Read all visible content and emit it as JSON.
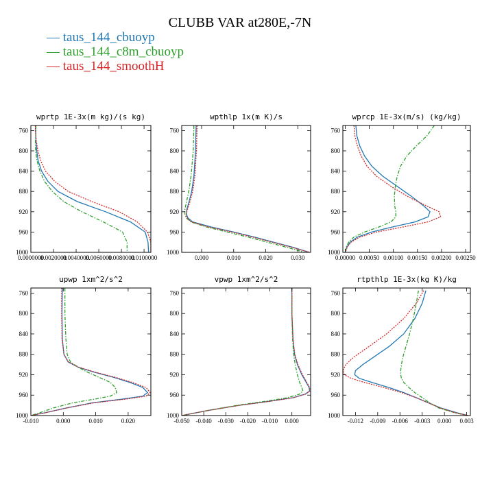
{
  "figure": {
    "title": "CLUBB VAR at280E,-7N"
  },
  "legend": [
    {
      "label": "taus_144_cbuoyp",
      "color": "#1f77b4",
      "dash": "solid"
    },
    {
      "label": "taus_144_c8m_cbuoyp",
      "color": "#2ca02c",
      "dash": "dashdot"
    },
    {
      "label": "taus_144_smoothH",
      "color": "#d62728",
      "dash": "dot"
    }
  ],
  "chart_data": [
    {
      "type": "line",
      "title": "wprtp  1E-3x(m kg)/(s kg)",
      "xlim": [
        0,
        0.0106
      ],
      "ylim": [
        750,
        1000
      ],
      "xticks": [
        0,
        0.002,
        0.004,
        0.006,
        0.008,
        0.01
      ],
      "xtick_labels": [
        "0.0000000",
        "0.0020000",
        "0.0040000",
        "0.0060000",
        "0.0080000",
        "0.0100000"
      ],
      "yticks": [
        760,
        800,
        840,
        880,
        920,
        960,
        1000
      ],
      "series": [
        {
          "name": "taus_144_cbuoyp",
          "y": [
            750,
            760,
            780,
            800,
            820,
            840,
            860,
            880,
            900,
            920,
            940,
            960,
            980,
            1000
          ],
          "x": [
            0.00042,
            0.00042,
            0.00045,
            0.00052,
            0.00065,
            0.00095,
            0.0015,
            0.0024,
            0.0041,
            0.0066,
            0.0088,
            0.0101,
            0.01035,
            0.0104
          ]
        },
        {
          "name": "taus_144_c8m_cbuoyp",
          "y": [
            750,
            760,
            780,
            800,
            820,
            840,
            860,
            880,
            900,
            920,
            940,
            960,
            980,
            1000
          ],
          "x": [
            0.00045,
            0.00045,
            0.0004,
            0.00042,
            0.00055,
            0.0008,
            0.0012,
            0.0019,
            0.0029,
            0.0045,
            0.0064,
            0.0081,
            0.0085,
            0.0085
          ]
        },
        {
          "name": "taus_144_smoothH",
          "y": [
            750,
            760,
            780,
            800,
            820,
            840,
            860,
            880,
            900,
            920,
            940,
            960,
            980,
            1000
          ],
          "x": [
            0.0004,
            0.0004,
            0.00048,
            0.00062,
            0.00088,
            0.0013,
            0.0021,
            0.0033,
            0.0054,
            0.0078,
            0.0094,
            0.0103,
            0.0106,
            0.0106
          ]
        }
      ]
    },
    {
      "type": "line",
      "title": "wpthlp  1x(m K)/s",
      "xlim": [
        -0.0062,
        0.034
      ],
      "ylim": [
        750,
        1000
      ],
      "xticks": [
        0,
        0.01,
        0.02,
        0.03
      ],
      "xtick_labels": [
        "0.000",
        "0.010",
        "0.020",
        "0.030"
      ],
      "yticks": [
        760,
        800,
        840,
        880,
        920,
        960,
        1000
      ],
      "series": [
        {
          "name": "taus_144_cbuoyp",
          "y": [
            750,
            800,
            850,
            880,
            900,
            915,
            925,
            932,
            940,
            950,
            960,
            970,
            980,
            990,
            1000
          ],
          "x": [
            -0.0017,
            -0.0019,
            -0.0024,
            -0.0031,
            -0.0039,
            -0.0046,
            -0.0047,
            -0.0043,
            -0.0028,
            0.003,
            0.01,
            0.0165,
            0.0225,
            0.0285,
            0.0335
          ]
        },
        {
          "name": "taus_144_c8m_cbuoyp",
          "y": [
            750,
            800,
            850,
            880,
            900,
            915,
            925,
            932,
            940,
            950,
            960,
            970,
            980,
            990,
            1000
          ],
          "x": [
            -0.0024,
            -0.0026,
            -0.0033,
            -0.004,
            -0.0047,
            -0.0052,
            -0.0052,
            -0.0048,
            -0.0034,
            0.0015,
            0.008,
            0.0145,
            0.0205,
            0.0265,
            0.0322
          ]
        },
        {
          "name": "taus_144_smoothH",
          "y": [
            750,
            800,
            850,
            880,
            900,
            915,
            925,
            932,
            940,
            950,
            960,
            970,
            980,
            990,
            1000
          ],
          "x": [
            -0.0014,
            -0.0016,
            -0.0021,
            -0.0028,
            -0.0036,
            -0.0044,
            -0.0048,
            -0.0046,
            -0.0032,
            0.0022,
            0.0095,
            0.016,
            0.022,
            0.028,
            0.0338
          ]
        }
      ]
    },
    {
      "type": "line",
      "title": "wprcp  1E-3x(m/s) (kg/kg)",
      "xlim": [
        -5e-05,
        0.0026
      ],
      "ylim": [
        750,
        1000
      ],
      "xticks": [
        0,
        0.0005,
        0.001,
        0.0015,
        0.002,
        0.0025
      ],
      "xtick_labels": [
        "0.00000",
        "0.00050",
        "0.00100",
        "0.00150",
        "0.00200",
        "0.00250"
      ],
      "yticks": [
        760,
        800,
        840,
        880,
        920,
        960,
        1000
      ],
      "series": [
        {
          "name": "taus_144_cbuoyp",
          "y": [
            750,
            770,
            790,
            810,
            830,
            850,
            870,
            890,
            910,
            920,
            930,
            940,
            950,
            960,
            970,
            980,
            990,
            1000
          ],
          "x": [
            0.00022,
            0.00024,
            0.0003,
            0.0004,
            0.00055,
            0.00078,
            0.00108,
            0.00138,
            0.00165,
            0.00176,
            0.00172,
            0.00145,
            0.00098,
            0.00055,
            0.00025,
            0.0001,
            3e-05,
            0.0
          ]
        },
        {
          "name": "taus_144_c8m_cbuoyp",
          "y": [
            750,
            770,
            790,
            810,
            830,
            850,
            870,
            890,
            910,
            920,
            930,
            940,
            950,
            960,
            970,
            980,
            990,
            1000
          ],
          "x": [
            0.00185,
            0.0017,
            0.00148,
            0.00128,
            0.00115,
            0.00108,
            0.00104,
            0.00102,
            0.00103,
            0.00105,
            0.00105,
            0.00095,
            0.0007,
            0.0004,
            0.00018,
            7e-05,
            2e-05,
            0.0
          ]
        },
        {
          "name": "taus_144_smoothH",
          "y": [
            750,
            770,
            790,
            810,
            830,
            850,
            870,
            890,
            910,
            920,
            930,
            940,
            950,
            960,
            970,
            980,
            990,
            1000
          ],
          "x": [
            0.00018,
            0.0002,
            0.00025,
            0.00033,
            0.00045,
            0.00065,
            0.00095,
            0.0013,
            0.00172,
            0.00195,
            0.00198,
            0.00172,
            0.0012,
            0.00065,
            0.0003,
            0.00012,
            4e-05,
            0.0
          ]
        }
      ]
    },
    {
      "type": "line",
      "title": "upwp  1xm^2/s^2",
      "xlim": [
        -0.01,
        0.027
      ],
      "ylim": [
        750,
        1000
      ],
      "xticks": [
        -0.01,
        0,
        0.01,
        0.02
      ],
      "xtick_labels": [
        "-0.010",
        "0.000",
        "0.010",
        "0.020"
      ],
      "yticks": [
        760,
        800,
        840,
        880,
        920,
        960,
        1000
      ],
      "series": [
        {
          "name": "taus_144_cbuoyp",
          "y": [
            750,
            800,
            850,
            880,
            895,
            905,
            915,
            925,
            935,
            945,
            955,
            962,
            968,
            975,
            985,
            995,
            1000
          ],
          "x": [
            -0.0003,
            -0.0004,
            -0.0003,
            0.0002,
            0.0015,
            0.0045,
            0.0095,
            0.0155,
            0.0205,
            0.0245,
            0.026,
            0.0245,
            0.018,
            0.009,
            0.001,
            -0.006,
            -0.01
          ]
        },
        {
          "name": "taus_144_c8m_cbuoyp",
          "y": [
            750,
            800,
            850,
            880,
            895,
            905,
            915,
            925,
            935,
            945,
            955,
            962,
            968,
            975,
            985,
            995,
            1000
          ],
          "x": [
            0.0005,
            0.0005,
            0.0008,
            0.0012,
            0.0022,
            0.0045,
            0.0075,
            0.011,
            0.0145,
            0.016,
            0.0165,
            0.0145,
            0.0095,
            0.003,
            -0.003,
            -0.0075,
            -0.01
          ]
        },
        {
          "name": "taus_144_smoothH",
          "y": [
            750,
            800,
            850,
            880,
            895,
            905,
            915,
            925,
            935,
            945,
            955,
            962,
            968,
            975,
            985,
            995,
            1000
          ],
          "x": [
            -0.0005,
            -0.0005,
            -0.0004,
            0.0002,
            0.0016,
            0.0047,
            0.0098,
            0.016,
            0.0212,
            0.0255,
            0.0268,
            0.0255,
            0.019,
            0.0095,
            0.0012,
            -0.0058,
            -0.01
          ]
        }
      ]
    },
    {
      "type": "line",
      "title": "vpwp  1xm^2/s^2",
      "xlim": [
        -0.05,
        0.0085
      ],
      "ylim": [
        750,
        1000
      ],
      "xticks": [
        -0.05,
        -0.04,
        -0.03,
        -0.02,
        -0.01,
        0
      ],
      "xtick_labels": [
        "-0.050",
        "-0.040",
        "-0.030",
        "-0.020",
        "-0.010",
        "0.000"
      ],
      "yticks": [
        760,
        800,
        840,
        880,
        920,
        960,
        1000
      ],
      "series": [
        {
          "name": "taus_144_cbuoyp",
          "y": [
            750,
            800,
            850,
            880,
            900,
            920,
            935,
            945,
            952,
            958,
            965,
            972,
            980,
            990,
            1000
          ],
          "x": [
            0.0,
            0.0,
            0.0005,
            0.0012,
            0.0025,
            0.0045,
            0.0065,
            0.0078,
            0.008,
            0.006,
            0.0005,
            -0.01,
            -0.024,
            -0.038,
            -0.05
          ]
        },
        {
          "name": "taus_144_c8m_cbuoyp",
          "y": [
            750,
            800,
            850,
            880,
            900,
            920,
            935,
            945,
            952,
            958,
            965,
            972,
            980,
            990,
            1000
          ],
          "x": [
            0.0,
            0.0,
            0.0003,
            0.0008,
            0.0015,
            0.0025,
            0.0035,
            0.0045,
            0.005,
            0.0035,
            -0.002,
            -0.012,
            -0.025,
            -0.038,
            -0.05
          ]
        },
        {
          "name": "taus_144_smoothH",
          "y": [
            750,
            800,
            850,
            880,
            900,
            920,
            935,
            945,
            952,
            958,
            965,
            972,
            980,
            990,
            1000
          ],
          "x": [
            0.0,
            0.0,
            0.0005,
            0.0013,
            0.0027,
            0.0048,
            0.0068,
            0.008,
            0.0082,
            0.0062,
            0.0007,
            -0.0098,
            -0.0238,
            -0.038,
            -0.05
          ]
        }
      ]
    },
    {
      "type": "line",
      "title": "rtpthlp  1E-3x(kg K)/kg",
      "xlim": [
        -0.0137,
        0.0035
      ],
      "ylim": [
        750,
        1000
      ],
      "xticks": [
        -0.012,
        -0.009,
        -0.006,
        -0.003,
        0,
        0.003
      ],
      "xtick_labels": [
        "-0.012",
        "-0.009",
        "-0.006",
        "-0.003",
        "0.000",
        "0.003"
      ],
      "yticks": [
        760,
        800,
        840,
        880,
        920,
        960,
        1000
      ],
      "series": [
        {
          "name": "taus_144_cbuoyp",
          "y": [
            755,
            780,
            810,
            840,
            865,
            885,
            900,
            912,
            920,
            927,
            935,
            945,
            955,
            965,
            975,
            985,
            995,
            1000
          ],
          "x": [
            -0.0025,
            -0.003,
            -0.004,
            -0.0055,
            -0.0075,
            -0.0095,
            -0.011,
            -0.012,
            -0.0121,
            -0.0115,
            -0.0098,
            -0.0075,
            -0.0055,
            -0.0038,
            -0.0022,
            -0.0005,
            0.0018,
            0.0032
          ]
        },
        {
          "name": "taus_144_c8m_cbuoyp",
          "y": [
            755,
            780,
            810,
            840,
            865,
            885,
            900,
            912,
            920,
            927,
            935,
            945,
            955,
            965,
            975,
            985,
            995,
            1000
          ],
          "x": [
            -0.0035,
            -0.0038,
            -0.0042,
            -0.0047,
            -0.0052,
            -0.0056,
            -0.0058,
            -0.0059,
            -0.0059,
            -0.0058,
            -0.0055,
            -0.0048,
            -0.004,
            -0.003,
            -0.002,
            -0.0008,
            0.0015,
            0.0032
          ]
        },
        {
          "name": "taus_144_smoothH",
          "y": [
            755,
            780,
            810,
            840,
            865,
            885,
            900,
            912,
            920,
            927,
            935,
            945,
            955,
            965,
            975,
            985,
            995,
            1000
          ],
          "x": [
            -0.0028,
            -0.0038,
            -0.0055,
            -0.0078,
            -0.0102,
            -0.0122,
            -0.0133,
            -0.0137,
            -0.0135,
            -0.0126,
            -0.0108,
            -0.0082,
            -0.0058,
            -0.0038,
            -0.0022,
            -0.0006,
            0.0016,
            0.0032
          ]
        }
      ]
    }
  ]
}
